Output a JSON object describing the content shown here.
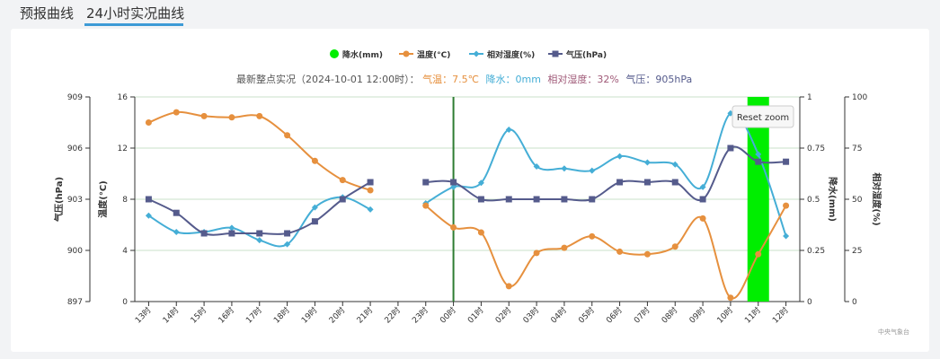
{
  "tabs": [
    {
      "label": "预报曲线"
    },
    {
      "label": "24小时实况曲线"
    }
  ],
  "legend": [
    {
      "label": "降水(mm)"
    },
    {
      "label": "温度(°C)"
    },
    {
      "label": "相对湿度(%)"
    },
    {
      "label": "气压(hPa)"
    }
  ],
  "subtitle": {
    "prefix": "最新整点实况（2024-10-01 12:00时）：",
    "temp": "气温：7.5℃",
    "precip": "降水：0mm",
    "humidity": "相对湿度：32%",
    "pressure": "气压：905hPa"
  },
  "reset_zoom": "Reset zoom",
  "credits": "中央气象台",
  "colors": {
    "temperature": "#e6903e",
    "humidity": "#45aed6",
    "pressure": "#555b8c",
    "precipitation": "#00ee00",
    "plotline": "#2e7d32",
    "grid": "#c8e0c8"
  },
  "chart_data": {
    "type": "line",
    "categories": [
      "13时",
      "14时",
      "15时",
      "16时",
      "17时",
      "18时",
      "19时",
      "20时",
      "21时",
      "22时",
      "23时",
      "00时",
      "01时",
      "02时",
      "03时",
      "04时",
      "05时",
      "06时",
      "07时",
      "08时",
      "09时",
      "10时",
      "11时",
      "12时"
    ],
    "axes": {
      "pressure": {
        "label": "气压(hPa)",
        "min": 897,
        "max": 909,
        "ticks": [
          897,
          900,
          903,
          906,
          909
        ]
      },
      "temperature": {
        "label": "温度(°C)",
        "min": 0,
        "max": 16,
        "ticks": [
          0,
          4,
          8,
          12,
          16
        ]
      },
      "precipitation": {
        "label": "降水(mm)",
        "min": 0,
        "max": 1,
        "ticks": [
          "0",
          "0.25",
          "0.5",
          "0.75",
          "1"
        ]
      },
      "humidity": {
        "label": "相对湿度(%)",
        "min": 0,
        "max": 100,
        "ticks": [
          0,
          25,
          50,
          75,
          100
        ]
      }
    },
    "series": [
      {
        "name": "降水(mm)",
        "type": "column",
        "axis": "precipitation",
        "values": [
          0,
          0,
          0,
          0,
          0,
          0,
          0,
          0,
          0,
          null,
          0,
          0,
          0,
          0,
          0,
          0,
          0,
          0,
          0,
          0,
          0,
          0,
          1,
          0
        ]
      },
      {
        "name": "温度(°C)",
        "type": "line",
        "axis": "temperature",
        "values": [
          14.0,
          14.8,
          14.5,
          14.4,
          14.5,
          13.0,
          11.0,
          9.5,
          8.7,
          null,
          7.5,
          5.8,
          5.4,
          1.2,
          3.8,
          4.2,
          5.1,
          3.9,
          3.7,
          4.3,
          6.5,
          0.3,
          3.7,
          7.5
        ]
      },
      {
        "name": "相对湿度(%)",
        "type": "line",
        "axis": "humidity",
        "values": [
          42,
          34,
          34,
          36,
          30,
          28,
          46,
          51,
          45,
          null,
          48,
          56,
          58,
          84,
          66,
          65,
          64,
          71,
          68,
          67,
          56,
          92,
          72,
          32
        ]
      },
      {
        "name": "气压(hPa)",
        "type": "line",
        "axis": "pressure",
        "values": [
          903,
          902.2,
          901,
          901,
          901,
          901,
          901.7,
          903,
          904,
          null,
          904,
          904,
          903,
          903,
          903,
          903,
          903,
          904,
          904,
          904,
          903,
          906,
          905.2,
          905.2
        ]
      }
    ],
    "plot_line_category": "00时",
    "grid": true,
    "legend_position": "top-center"
  }
}
